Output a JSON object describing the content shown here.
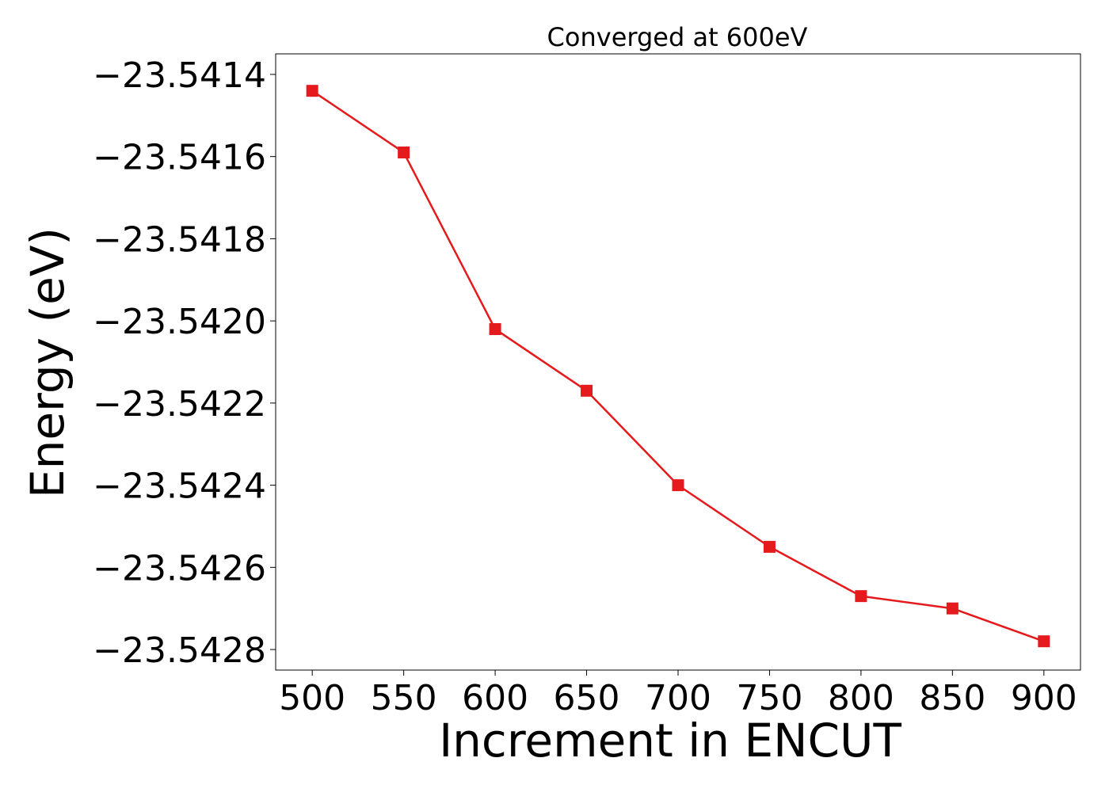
{
  "chart_data": {
    "type": "line",
    "title": "Converged at 600eV",
    "xlabel": "Increment in ENCUT",
    "ylabel": "Energy (eV)",
    "x": [
      500,
      550,
      600,
      650,
      700,
      750,
      800,
      850,
      900
    ],
    "xlim": [
      480,
      920
    ],
    "ylim": [
      -23.54285,
      -23.54135
    ],
    "xticks": [
      500,
      550,
      600,
      650,
      700,
      750,
      800,
      850,
      900
    ],
    "xtick_labels": [
      "500",
      "550",
      "600",
      "650",
      "700",
      "750",
      "800",
      "850",
      "900"
    ],
    "yticks": [
      -23.5414,
      -23.5416,
      -23.5418,
      -23.542,
      -23.5422,
      -23.5424,
      -23.5426,
      -23.5428
    ],
    "ytick_labels": [
      "−23.5414",
      "−23.5416",
      "−23.5418",
      "−23.5420",
      "−23.5422",
      "−23.5424",
      "−23.5426",
      "−23.5428"
    ],
    "grid": false,
    "legend": false,
    "series": [
      {
        "color": "#e41a1c",
        "marker": "square",
        "values": [
          -23.54144,
          -23.54159,
          -23.54202,
          -23.54217,
          -23.5424,
          -23.54255,
          -23.54267,
          -23.5427,
          -23.54278
        ]
      }
    ]
  }
}
